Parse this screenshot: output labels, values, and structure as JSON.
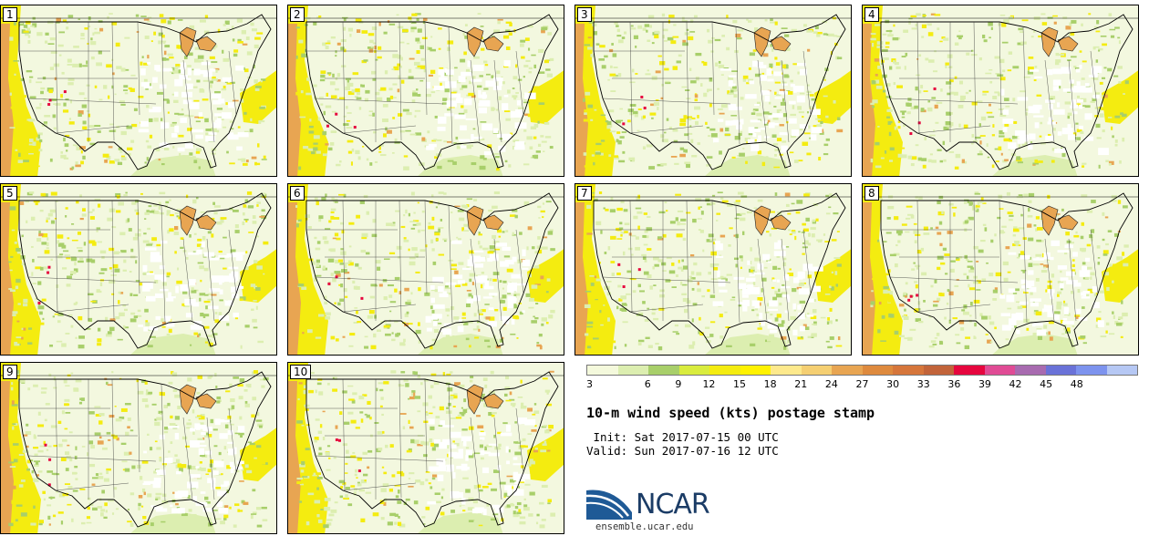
{
  "figure": {
    "title": "10-m wind speed (kts) postage stamp",
    "init_label": " Init: Sat 2017-07-15 00 UTC",
    "valid_label": "Valid: Sun 2017-07-16 12 UTC",
    "logo_text": "NCAR",
    "logo_url": "ensemble.ucar.edu"
  },
  "stamps": [
    {
      "label": "1"
    },
    {
      "label": "2"
    },
    {
      "label": "3"
    },
    {
      "label": "4"
    },
    {
      "label": "5"
    },
    {
      "label": "6"
    },
    {
      "label": "7"
    },
    {
      "label": "8"
    },
    {
      "label": "9"
    },
    {
      "label": "10"
    }
  ],
  "colorbar": {
    "ticks": [
      "3",
      "6",
      "9",
      "12",
      "15",
      "18",
      "21",
      "24",
      "27",
      "30",
      "33",
      "36",
      "39",
      "42",
      "45",
      "48"
    ],
    "colors": [
      "#f4f9dc",
      "#dceeb0",
      "#a8cf6a",
      "#d9ec3e",
      "#f4ec10",
      "#fff200",
      "#fde98c",
      "#f5cf72",
      "#e8a552",
      "#de8a3e",
      "#d6763b",
      "#c2643a",
      "#e6063e",
      "#e04b95",
      "#a86bb0",
      "#6a72d8",
      "#7d93ee",
      "#b6c8f4"
    ]
  },
  "map_colors": {
    "background": "#f3f8df",
    "light_green": "#dceeb0",
    "mid_green": "#a8cf6a",
    "yellow": "#f4ec10",
    "orange": "#e8a552",
    "red": "#e6063e",
    "white": "#ffffff"
  }
}
